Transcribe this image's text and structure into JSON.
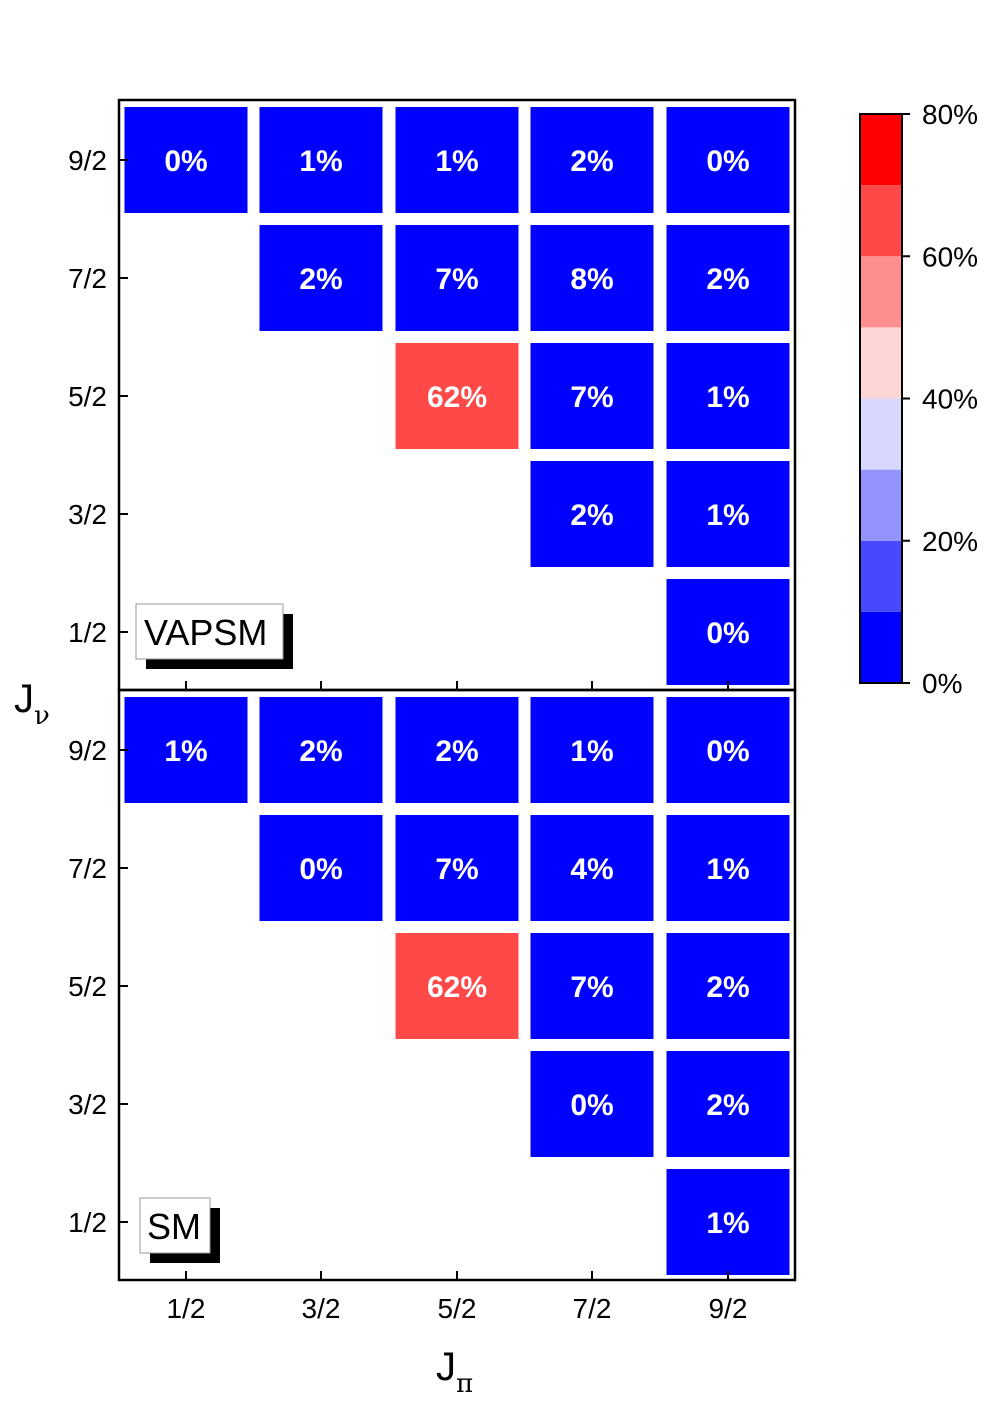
{
  "chart_data": {
    "type": "heatmap",
    "x_categories": [
      "1/2",
      "3/2",
      "5/2",
      "7/2",
      "9/2"
    ],
    "y_categories": [
      "1/2",
      "3/2",
      "5/2",
      "7/2",
      "9/2"
    ],
    "xlabel": {
      "main": "J",
      "sub": "π"
    },
    "ylabel": {
      "main": "J",
      "sub": "ν"
    },
    "colorbar": {
      "min": 0,
      "max": 80,
      "unit": "%",
      "ticks": [
        "0%",
        "20%",
        "40%",
        "60%",
        "80%"
      ],
      "tick_values": [
        0,
        20,
        40,
        60,
        80
      ],
      "bands": [
        {
          "from": 0,
          "to": 10,
          "color": "#0000ff"
        },
        {
          "from": 10,
          "to": 20,
          "color": "#4848ff"
        },
        {
          "from": 20,
          "to": 30,
          "color": "#9494ff"
        },
        {
          "from": 30,
          "to": 40,
          "color": "#d8d8ff"
        },
        {
          "from": 40,
          "to": 50,
          "color": "#ffd6d6"
        },
        {
          "from": 50,
          "to": 60,
          "color": "#ff8e8e"
        },
        {
          "from": 60,
          "to": 70,
          "color": "#ff4848"
        },
        {
          "from": 70,
          "to": 80,
          "color": "#ff0000"
        }
      ]
    },
    "panels": [
      {
        "label": "VAPSM",
        "cells": [
          {
            "x": "1/2",
            "y": "9/2",
            "value": 0,
            "text": "0%"
          },
          {
            "x": "3/2",
            "y": "9/2",
            "value": 1,
            "text": "1%"
          },
          {
            "x": "5/2",
            "y": "9/2",
            "value": 1,
            "text": "1%"
          },
          {
            "x": "7/2",
            "y": "9/2",
            "value": 2,
            "text": "2%"
          },
          {
            "x": "9/2",
            "y": "9/2",
            "value": 0,
            "text": "0%"
          },
          {
            "x": "3/2",
            "y": "7/2",
            "value": 2,
            "text": "2%"
          },
          {
            "x": "5/2",
            "y": "7/2",
            "value": 7,
            "text": "7%"
          },
          {
            "x": "7/2",
            "y": "7/2",
            "value": 8,
            "text": "8%"
          },
          {
            "x": "9/2",
            "y": "7/2",
            "value": 2,
            "text": "2%"
          },
          {
            "x": "5/2",
            "y": "5/2",
            "value": 62,
            "text": "62%"
          },
          {
            "x": "7/2",
            "y": "5/2",
            "value": 7,
            "text": "7%"
          },
          {
            "x": "9/2",
            "y": "5/2",
            "value": 1,
            "text": "1%"
          },
          {
            "x": "7/2",
            "y": "3/2",
            "value": 2,
            "text": "2%"
          },
          {
            "x": "9/2",
            "y": "3/2",
            "value": 1,
            "text": "1%"
          },
          {
            "x": "9/2",
            "y": "1/2",
            "value": 0,
            "text": "0%"
          }
        ]
      },
      {
        "label": "SM",
        "cells": [
          {
            "x": "1/2",
            "y": "9/2",
            "value": 1,
            "text": "1%"
          },
          {
            "x": "3/2",
            "y": "9/2",
            "value": 2,
            "text": "2%"
          },
          {
            "x": "5/2",
            "y": "9/2",
            "value": 2,
            "text": "2%"
          },
          {
            "x": "7/2",
            "y": "9/2",
            "value": 1,
            "text": "1%"
          },
          {
            "x": "9/2",
            "y": "9/2",
            "value": 0,
            "text": "0%"
          },
          {
            "x": "3/2",
            "y": "7/2",
            "value": 0,
            "text": "0%"
          },
          {
            "x": "5/2",
            "y": "7/2",
            "value": 7,
            "text": "7%"
          },
          {
            "x": "7/2",
            "y": "7/2",
            "value": 4,
            "text": "4%"
          },
          {
            "x": "9/2",
            "y": "7/2",
            "value": 1,
            "text": "1%"
          },
          {
            "x": "5/2",
            "y": "5/2",
            "value": 62,
            "text": "62%"
          },
          {
            "x": "7/2",
            "y": "5/2",
            "value": 7,
            "text": "7%"
          },
          {
            "x": "9/2",
            "y": "5/2",
            "value": 2,
            "text": "2%"
          },
          {
            "x": "7/2",
            "y": "3/2",
            "value": 0,
            "text": "0%"
          },
          {
            "x": "9/2",
            "y": "3/2",
            "value": 2,
            "text": "2%"
          },
          {
            "x": "9/2",
            "y": "1/2",
            "value": 1,
            "text": "1%"
          }
        ]
      }
    ]
  }
}
